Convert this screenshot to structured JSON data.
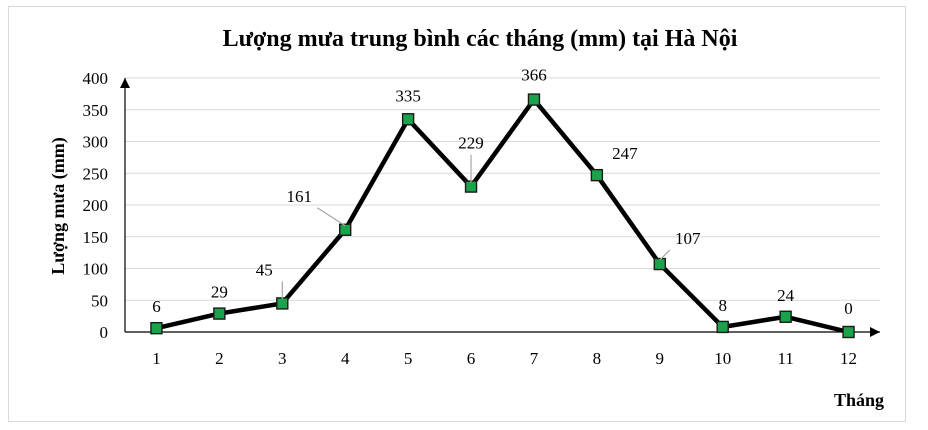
{
  "chart_data": {
    "type": "line",
    "title": "Lượng mưa trung bình các tháng (mm) tại Hà Nội",
    "xlabel": "Tháng",
    "ylabel": "Lượng mưa (mm)",
    "categories": [
      "1",
      "2",
      "3",
      "4",
      "5",
      "6",
      "7",
      "8",
      "9",
      "10",
      "11",
      "12"
    ],
    "values": [
      6,
      29,
      45,
      161,
      335,
      229,
      366,
      247,
      107,
      8,
      24,
      0
    ],
    "ylim": [
      0,
      400
    ],
    "yticks": [
      0,
      50,
      100,
      150,
      200,
      250,
      300,
      350,
      400
    ],
    "grid": true,
    "legend": "none",
    "colors": {
      "line": "#000000",
      "marker": "#1aa34a",
      "marker_edge": "#1a1a1a",
      "grid": "#d9d9d9",
      "leader": "#a6a6a6"
    }
  }
}
